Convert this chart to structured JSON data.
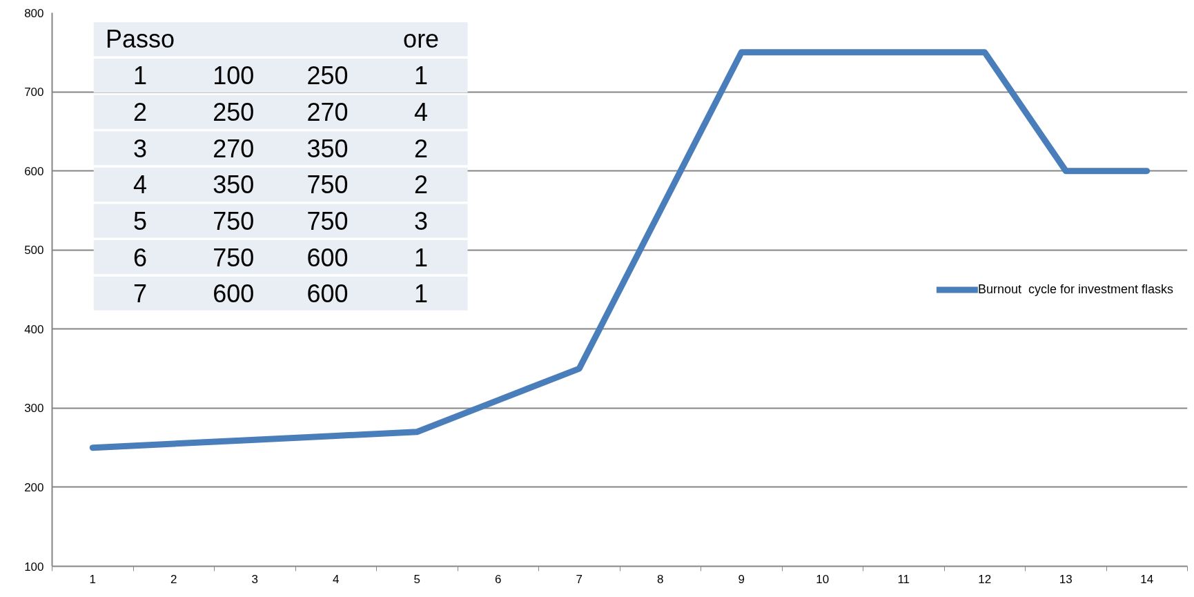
{
  "chart_data": {
    "type": "line",
    "categories": [
      "1",
      "2",
      "3",
      "4",
      "5",
      "6",
      "7",
      "8",
      "9",
      "10",
      "11",
      "12",
      "13",
      "14"
    ],
    "series": [
      {
        "name": "Burnout  cycle for investment flasks",
        "color": "#4a7ebb",
        "values": [
          250,
          255,
          260,
          265,
          270,
          310,
          350,
          550,
          750,
          750,
          750,
          750,
          600,
          600
        ]
      }
    ],
    "ylim": [
      100,
      800
    ],
    "yticks": [
      100,
      200,
      300,
      400,
      500,
      600,
      700,
      800
    ],
    "grid": "y",
    "legend": "right",
    "marker": "none",
    "line_style": "solid",
    "annotations": [
      "Passo",
      "ore",
      "1",
      "100",
      "250",
      "1",
      "2",
      "250",
      "270",
      "4",
      "3",
      "270",
      "350",
      "2",
      "4",
      "350",
      "750",
      "2",
      "5",
      "750",
      "750",
      "3",
      "6",
      "750",
      "600",
      "1",
      "7",
      "600",
      "600",
      "1"
    ]
  }
}
